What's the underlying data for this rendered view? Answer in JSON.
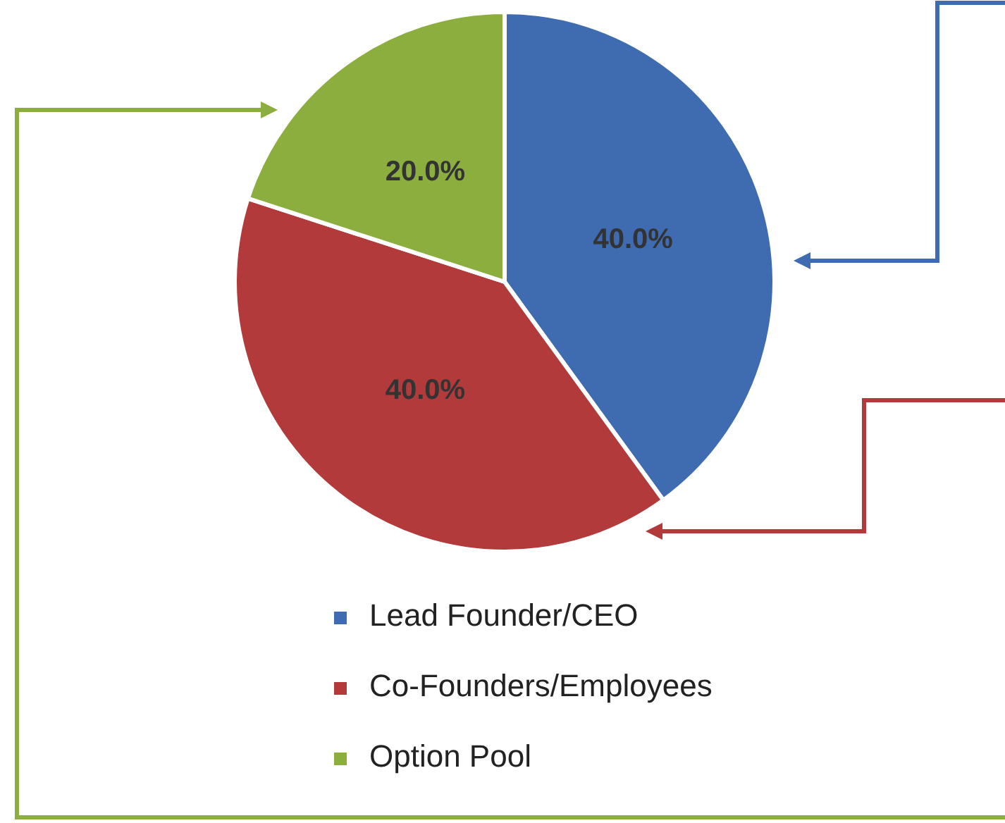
{
  "chart_data": {
    "type": "pie",
    "categories": [
      "Lead Founder/CEO",
      "Co-Founders/Employees",
      "Option Pool"
    ],
    "values": [
      40,
      40,
      20
    ],
    "colors": [
      "#3f6bb1",
      "#b23a3a",
      "#8bae3f"
    ],
    "value_labels": [
      "40.0%",
      "40.0%",
      "20.0%"
    ],
    "legend": "bottom"
  }
}
